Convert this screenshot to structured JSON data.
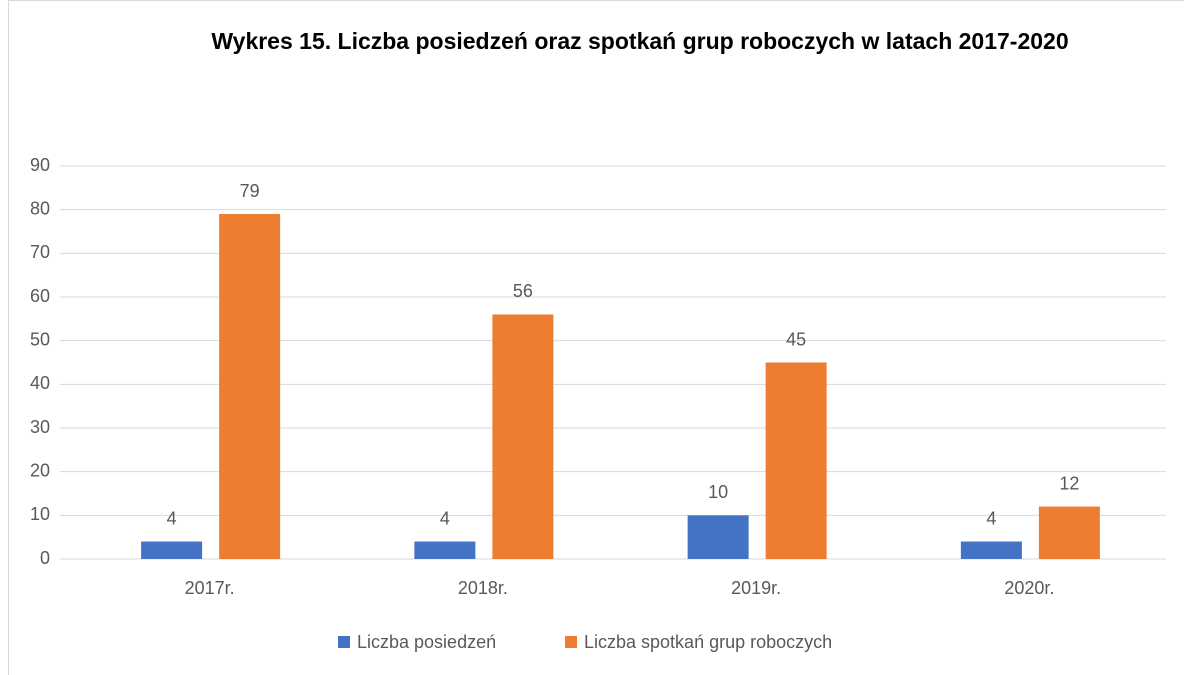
{
  "chart_data": {
    "type": "bar",
    "title": "Wykres 15. Liczba posiedzeń oraz spotkań grup roboczych w latach 2017-2020",
    "categories": [
      "2017r.",
      "2018r.",
      "2019r.",
      "2020r."
    ],
    "series": [
      {
        "name": "Liczba posiedzeń",
        "color": "#4472c4",
        "values": [
          4,
          4,
          10,
          4
        ]
      },
      {
        "name": "Liczba spotkań grup roboczych",
        "color": "#ed7d31",
        "values": [
          79,
          56,
          45,
          12
        ]
      }
    ],
    "ylim": [
      0,
      90
    ],
    "yticks": [
      0,
      10,
      20,
      30,
      40,
      50,
      60,
      70,
      80,
      90
    ],
    "grid": true,
    "legend": "bottom"
  }
}
